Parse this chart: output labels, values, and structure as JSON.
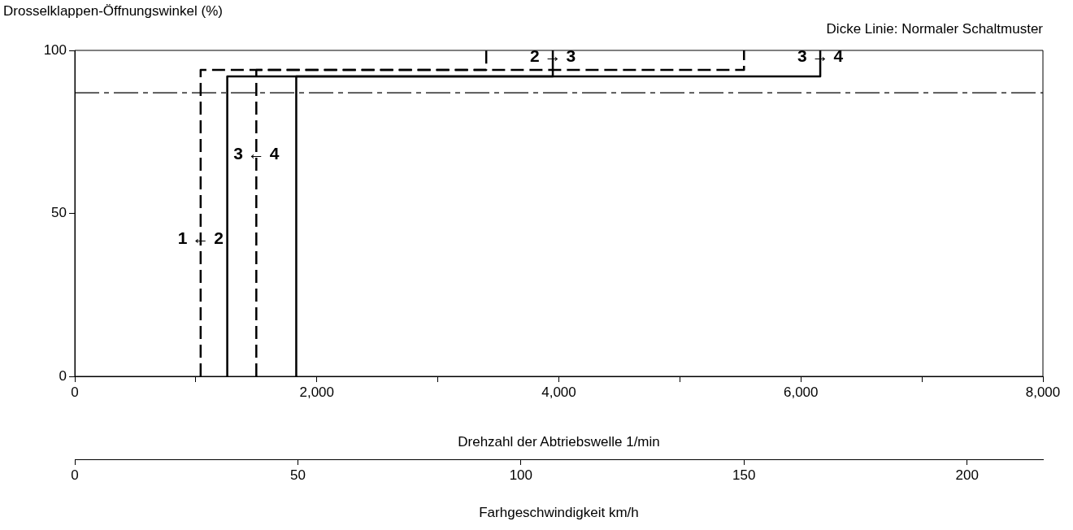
{
  "chart_data": {
    "type": "line",
    "ylabel": "Drosselklappen-Öffnungswinkel (%)",
    "xlabel": "Drehzahl der Abtriebswelle 1/min",
    "x2label": "Farhgeschwindigkeit km/h",
    "annotations": [
      "Dicke Linie: Normaler Schaltmuster",
      {
        "text": "1 ← 2",
        "x": 1040,
        "y": 42
      },
      {
        "text": "3 ← 4",
        "x": 1500,
        "y": 68
      },
      {
        "text": "2 → 3",
        "x": 3950,
        "y": 98
      },
      {
        "text": "3 → 4",
        "x": 6160,
        "y": 98
      }
    ],
    "series": [
      {
        "color": "#000000",
        "line_style": "dashed",
        "x": [
          1040,
          1040,
          3400,
          3400
        ],
        "values": [
          0,
          94,
          94,
          100
        ]
      },
      {
        "color": "#000000",
        "line_style": "solid",
        "x": [
          1260,
          1260,
          3950,
          3950
        ],
        "values": [
          0,
          92,
          92,
          100
        ]
      },
      {
        "color": "#000000",
        "line_style": "dashed",
        "x": [
          1500,
          1500,
          5530,
          5530
        ],
        "values": [
          0,
          94,
          94,
          100
        ]
      },
      {
        "color": "#000000",
        "line_style": "solid",
        "x": [
          1830,
          1830,
          6160,
          6160
        ],
        "values": [
          0,
          92,
          92,
          100
        ]
      }
    ],
    "ref_lines": [
      {
        "axis": "y",
        "value": 87,
        "color": "#000000",
        "line_style": "dashed"
      }
    ],
    "xlim": [
      0,
      8000
    ],
    "xticks": [
      0,
      {
        "value": 1000,
        "label": null
      },
      {
        "value": 2000,
        "label": "2,000"
      },
      {
        "value": 3000,
        "label": null
      },
      {
        "value": 4000,
        "label": "4,000"
      },
      {
        "value": 5000,
        "label": null
      },
      {
        "value": 6000,
        "label": "6,000"
      },
      {
        "value": 7000,
        "label": null
      },
      {
        "value": 8000,
        "label": "8,000"
      }
    ],
    "x2lim": [
      0,
      217
    ],
    "x2ticks": [
      0,
      50,
      100,
      150,
      200
    ],
    "ylim": [
      0,
      100
    ],
    "yticks": [
      0,
      50,
      100
    ],
    "grid": false,
    "legend": false,
    "marker": "none"
  }
}
